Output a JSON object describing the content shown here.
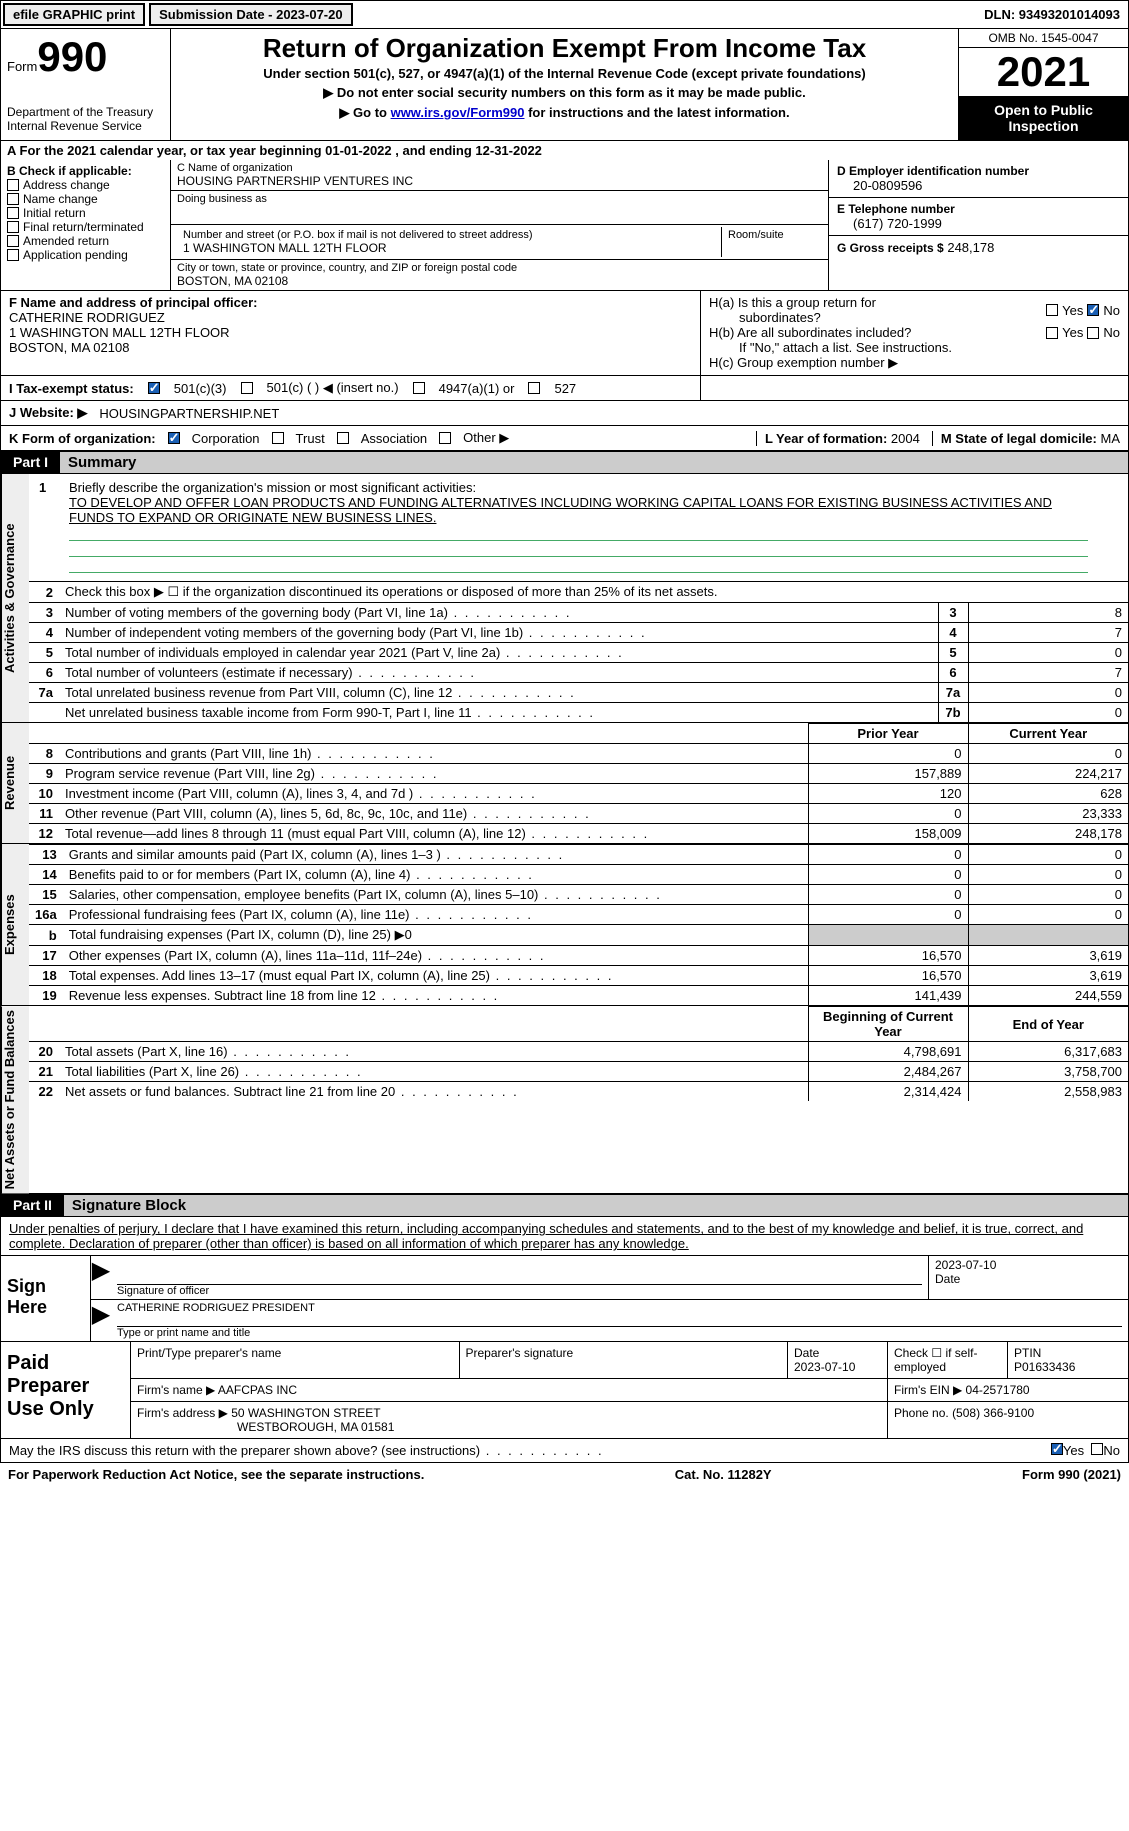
{
  "topbar": {
    "efile": "efile GRAPHIC print",
    "submission_label": "Submission Date - 2023-07-20",
    "dln_label": "DLN: 93493201014093"
  },
  "header": {
    "form_prefix": "Form",
    "form_number": "990",
    "dept": "Department of the Treasury\nInternal Revenue Service",
    "title": "Return of Organization Exempt From Income Tax",
    "subtitle": "Under section 501(c), 527, or 4947(a)(1) of the Internal Revenue Code (except private foundations)",
    "note1": "▶ Do not enter social security numbers on this form as it may be made public.",
    "note2_pre": "▶ Go to ",
    "note2_link": "www.irs.gov/Form990",
    "note2_post": " for instructions and the latest information.",
    "omb": "OMB No. 1545-0047",
    "year": "2021",
    "inspection": "Open to Public Inspection"
  },
  "section_a": "A For the 2021 calendar year, or tax year beginning 01-01-2022   , and ending 12-31-2022",
  "section_b": {
    "label": "B Check if applicable:",
    "items": [
      "Address change",
      "Name change",
      "Initial return",
      "Final return/terminated",
      "Amended return",
      "Application pending"
    ]
  },
  "section_c": {
    "name_label": "C Name of organization",
    "name": "HOUSING PARTNERSHIP VENTURES INC",
    "dba_label": "Doing business as",
    "dba": "",
    "addr_label": "Number and street (or P.O. box if mail is not delivered to street address)",
    "room_label": "Room/suite",
    "addr": "1 WASHINGTON MALL 12TH FLOOR",
    "city_label": "City or town, state or province, country, and ZIP or foreign postal code",
    "city": "BOSTON, MA  02108"
  },
  "section_d": {
    "label": "D Employer identification number",
    "value": "20-0809596",
    "phone_label": "E Telephone number",
    "phone": "(617) 720-1999",
    "gross_label": "G Gross receipts $",
    "gross": "248,178"
  },
  "section_f": {
    "label": "F Name and address of principal officer:",
    "name": "CATHERINE RODRIGUEZ",
    "addr1": "1 WASHINGTON MALL 12TH FLOOR",
    "addr2": "BOSTON, MA  02108"
  },
  "section_h": {
    "a_label": "H(a)  Is this a group return for",
    "a_label2": "subordinates?",
    "b_label": "H(b)  Are all subordinates included?",
    "b_note": "If \"No,\" attach a list. See instructions.",
    "c_label": "H(c)  Group exemption number ▶",
    "yes": "Yes",
    "no": "No"
  },
  "section_i": {
    "label": "I  Tax-exempt status:",
    "opt1": "501(c)(3)",
    "opt2": "501(c) (  ) ◀ (insert no.)",
    "opt3": "4947(a)(1) or",
    "opt4": "527"
  },
  "section_j": {
    "label": "J  Website: ▶",
    "value": "HOUSINGPARTNERSHIP.NET"
  },
  "section_k": {
    "label": "K Form of organization:",
    "opts": [
      "Corporation",
      "Trust",
      "Association",
      "Other ▶"
    ]
  },
  "section_l": {
    "label": "L Year of formation:",
    "value": "2004"
  },
  "section_m": {
    "label": "M State of legal domicile:",
    "value": "MA"
  },
  "part1": {
    "label": "Part I",
    "title": "Summary"
  },
  "mission": {
    "num": "1",
    "label": "Briefly describe the organization's mission or most significant activities:",
    "text": "TO DEVELOP AND OFFER LOAN PRODUCTS AND FUNDING ALTERNATIVES INCLUDING WORKING CAPITAL LOANS FOR EXISTING BUSINESS ACTIVITIES AND FUNDS TO EXPAND OR ORIGINATE NEW BUSINESS LINES."
  },
  "vtabs": {
    "governance": "Activities & Governance",
    "revenue": "Revenue",
    "expenses": "Expenses",
    "netassets": "Net Assets or Fund Balances"
  },
  "gov_rows": [
    {
      "n": "2",
      "txt": "Check this box ▶ ☐  if the organization discontinued its operations or disposed of more than 25% of its net assets."
    },
    {
      "n": "3",
      "txt": "Number of voting members of the governing body (Part VI, line 1a)",
      "box": "3",
      "v": "8"
    },
    {
      "n": "4",
      "txt": "Number of independent voting members of the governing body (Part VI, line 1b)",
      "box": "4",
      "v": "7"
    },
    {
      "n": "5",
      "txt": "Total number of individuals employed in calendar year 2021 (Part V, line 2a)",
      "box": "5",
      "v": "0"
    },
    {
      "n": "6",
      "txt": "Total number of volunteers (estimate if necessary)",
      "box": "6",
      "v": "7"
    },
    {
      "n": "7a",
      "txt": "Total unrelated business revenue from Part VIII, column (C), line 12",
      "box": "7a",
      "v": "0"
    },
    {
      "n": "",
      "txt": "Net unrelated business taxable income from Form 990-T, Part I, line 11",
      "box": "7b",
      "v": "0"
    }
  ],
  "rev_header": {
    "prior": "Prior Year",
    "current": "Current Year"
  },
  "rev_rows": [
    {
      "n": "8",
      "txt": "Contributions and grants (Part VIII, line 1h)",
      "p": "0",
      "c": "0"
    },
    {
      "n": "9",
      "txt": "Program service revenue (Part VIII, line 2g)",
      "p": "157,889",
      "c": "224,217"
    },
    {
      "n": "10",
      "txt": "Investment income (Part VIII, column (A), lines 3, 4, and 7d )",
      "p": "120",
      "c": "628"
    },
    {
      "n": "11",
      "txt": "Other revenue (Part VIII, column (A), lines 5, 6d, 8c, 9c, 10c, and 11e)",
      "p": "0",
      "c": "23,333"
    },
    {
      "n": "12",
      "txt": "Total revenue—add lines 8 through 11 (must equal Part VIII, column (A), line 12)",
      "p": "158,009",
      "c": "248,178"
    }
  ],
  "exp_rows": [
    {
      "n": "13",
      "txt": "Grants and similar amounts paid (Part IX, column (A), lines 1–3 )",
      "p": "0",
      "c": "0"
    },
    {
      "n": "14",
      "txt": "Benefits paid to or for members (Part IX, column (A), line 4)",
      "p": "0",
      "c": "0"
    },
    {
      "n": "15",
      "txt": "Salaries, other compensation, employee benefits (Part IX, column (A), lines 5–10)",
      "p": "0",
      "c": "0"
    },
    {
      "n": "16a",
      "txt": "Professional fundraising fees (Part IX, column (A), line 11e)",
      "p": "0",
      "c": "0"
    },
    {
      "n": "b",
      "txt": "Total fundraising expenses (Part IX, column (D), line 25) ▶0",
      "grey": true
    },
    {
      "n": "17",
      "txt": "Other expenses (Part IX, column (A), lines 11a–11d, 11f–24e)",
      "p": "16,570",
      "c": "3,619"
    },
    {
      "n": "18",
      "txt": "Total expenses. Add lines 13–17 (must equal Part IX, column (A), line 25)",
      "p": "16,570",
      "c": "3,619"
    },
    {
      "n": "19",
      "txt": "Revenue less expenses. Subtract line 18 from line 12",
      "p": "141,439",
      "c": "244,559"
    }
  ],
  "na_header": {
    "begin": "Beginning of Current Year",
    "end": "End of Year"
  },
  "na_rows": [
    {
      "n": "20",
      "txt": "Total assets (Part X, line 16)",
      "p": "4,798,691",
      "c": "6,317,683"
    },
    {
      "n": "21",
      "txt": "Total liabilities (Part X, line 26)",
      "p": "2,484,267",
      "c": "3,758,700"
    },
    {
      "n": "22",
      "txt": "Net assets or fund balances. Subtract line 21 from line 20",
      "p": "2,314,424",
      "c": "2,558,983"
    }
  ],
  "part2": {
    "label": "Part II",
    "title": "Signature Block"
  },
  "sig_intro": "Under penalties of perjury, I declare that I have examined this return, including accompanying schedules and statements, and to the best of my knowledge and belief, it is true, correct, and complete. Declaration of preparer (other than officer) is based on all information of which preparer has any knowledge.",
  "sign": {
    "label": "Sign Here",
    "sig_label": "Signature of officer",
    "date": "2023-07-10",
    "date_label": "Date",
    "name": "CATHERINE RODRIGUEZ  PRESIDENT",
    "name_label": "Type or print name and title"
  },
  "preparer": {
    "label": "Paid Preparer Use Only",
    "name_label": "Print/Type preparer's name",
    "sig_label": "Preparer's signature",
    "date_label": "Date",
    "date": "2023-07-10",
    "check_label": "Check ☐ if self-employed",
    "ptin_label": "PTIN",
    "ptin": "P01633436",
    "firm_label": "Firm's name    ▶",
    "firm": "AAFCPAS INC",
    "ein_label": "Firm's EIN ▶",
    "ein": "04-2571780",
    "addr_label": "Firm's address ▶",
    "addr1": "50 WASHINGTON STREET",
    "addr2": "WESTBOROUGH, MA  01581",
    "phone_label": "Phone no.",
    "phone": "(508) 366-9100"
  },
  "discuss": {
    "text": "May the IRS discuss this return with the preparer shown above? (see instructions)",
    "yes": "Yes",
    "no": "No"
  },
  "footer": {
    "left": "For Paperwork Reduction Act Notice, see the separate instructions.",
    "mid": "Cat. No. 11282Y",
    "right": "Form 990 (2021)"
  }
}
